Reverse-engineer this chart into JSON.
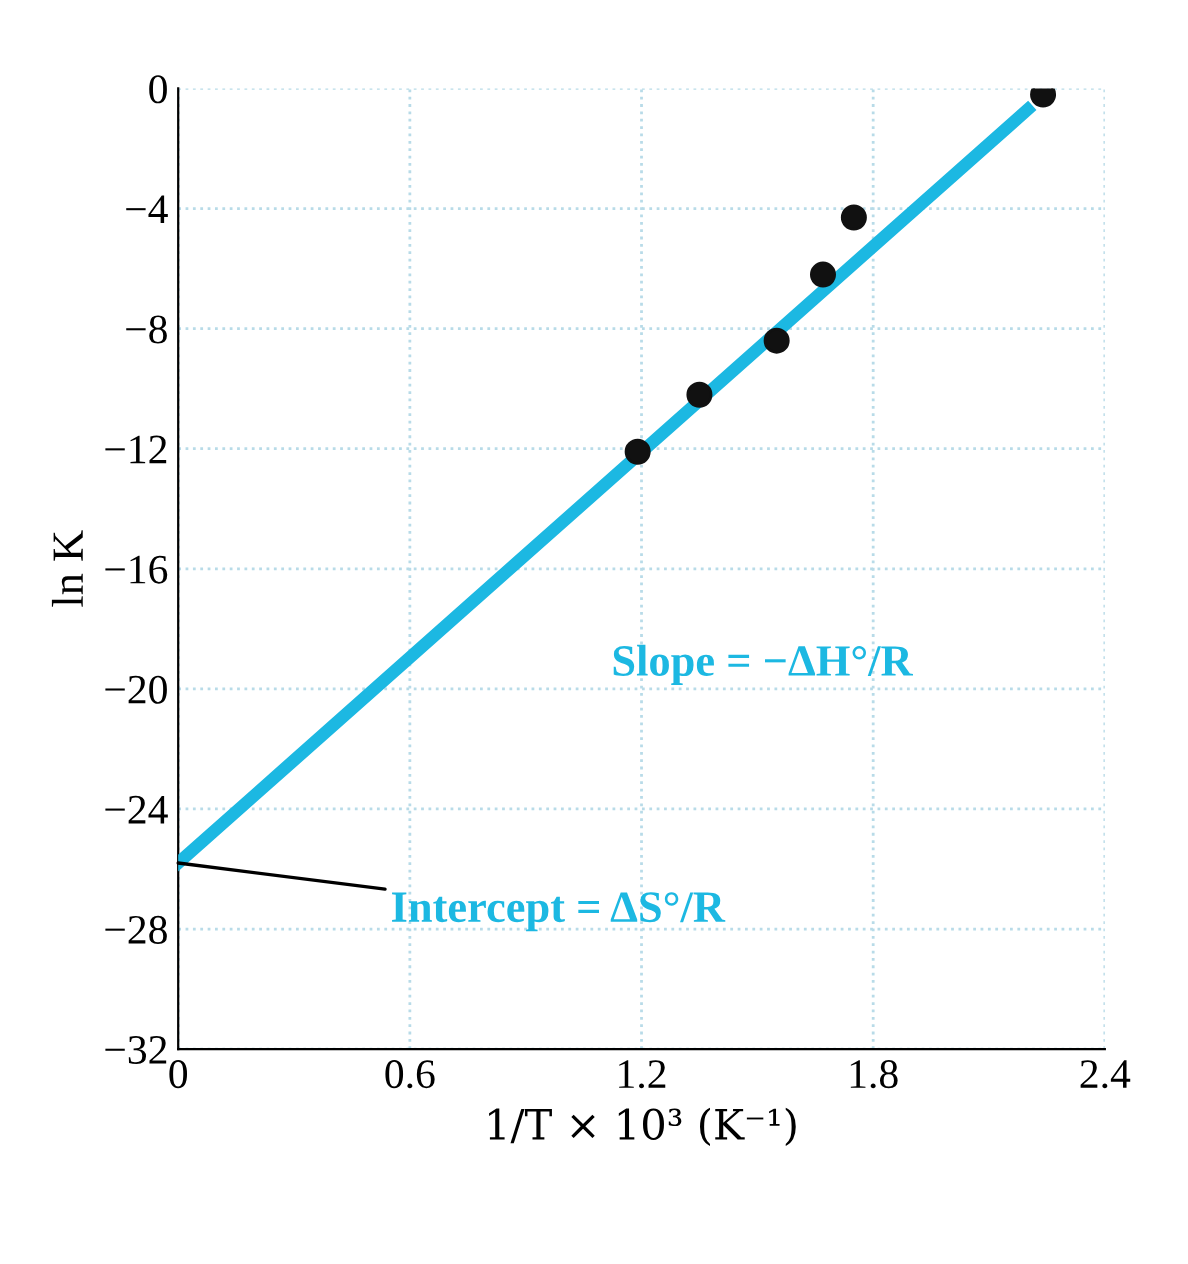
{
  "chart_data": {
    "type": "scatter",
    "xlabel": "1/T × 10³ (K⁻¹)",
    "ylabel": "ln K",
    "xlim": [
      0,
      2.4
    ],
    "xticks": [
      0,
      0.6,
      1.2,
      1.8,
      2.4
    ],
    "ylim": [
      -32,
      0
    ],
    "yticks": [
      0,
      -4,
      -8,
      -12,
      -16,
      -20,
      -24,
      -28,
      -32
    ],
    "grid": true,
    "series": [
      {
        "marker": "circle",
        "color": "#111111",
        "x": [
          1.19,
          1.35,
          1.55,
          1.67,
          1.75,
          2.24
        ],
        "values": [
          -12.1,
          -10.2,
          -8.4,
          -6.2,
          -4.3,
          -0.2
        ]
      },
      {
        "type": "line",
        "color": "#1cb8e2",
        "x": [
          0,
          2.2
        ],
        "values": [
          -25.8,
          -0.7
        ]
      }
    ],
    "annotations": [
      "Slope = −ΔH°/R",
      {
        "text": "Intercept = ΔS°/R",
        "x": 0,
        "y": -25.8
      }
    ]
  }
}
